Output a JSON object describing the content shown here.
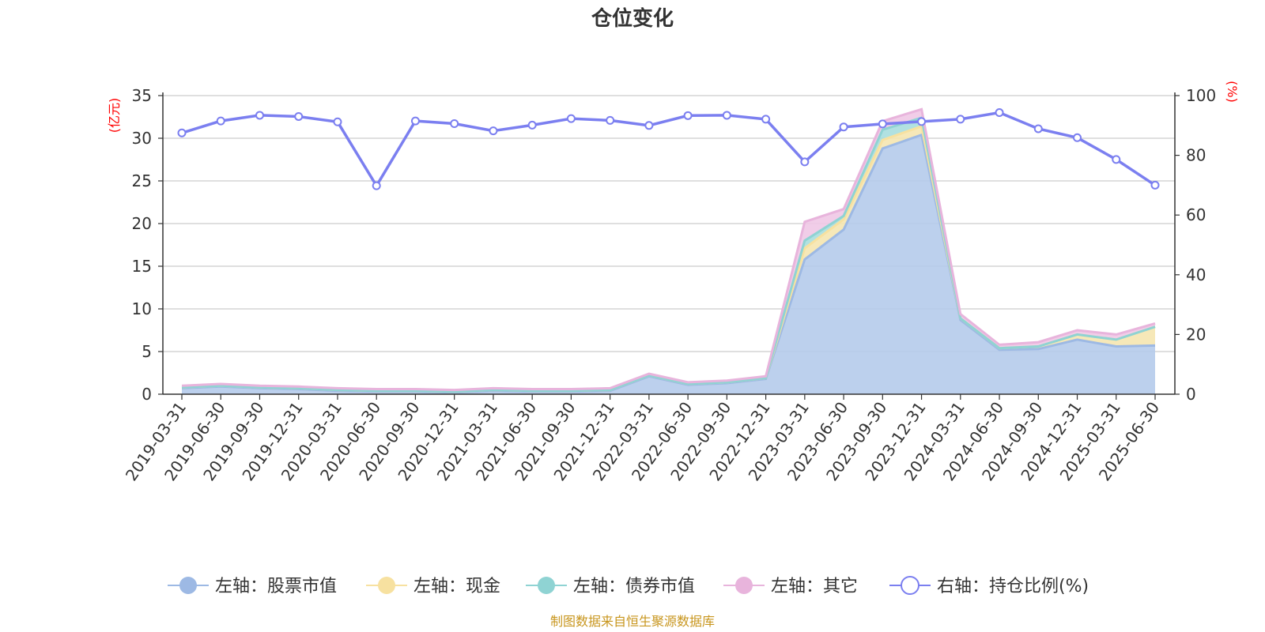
{
  "chart_data": {
    "type": "area",
    "title": "仓位变化",
    "left_unit": "(亿元)",
    "right_unit": "(%)",
    "categories": [
      "2019-03-31",
      "2019-06-30",
      "2019-09-30",
      "2019-12-31",
      "2020-03-31",
      "2020-06-30",
      "2020-09-30",
      "2020-12-31",
      "2021-03-31",
      "2021-06-30",
      "2021-09-30",
      "2021-12-31",
      "2022-03-31",
      "2022-06-30",
      "2022-09-30",
      "2022-12-31",
      "2023-03-31",
      "2023-06-30",
      "2023-09-30",
      "2023-12-31",
      "2024-03-31",
      "2024-06-30",
      "2024-09-30",
      "2024-12-31",
      "2025-03-31",
      "2025-06-30"
    ],
    "left_axis": {
      "min": 0,
      "max": 35,
      "ticks": [
        0,
        5,
        10,
        15,
        20,
        25,
        30,
        35
      ]
    },
    "right_axis": {
      "min": 0,
      "max": 100,
      "ticks": [
        0,
        20,
        40,
        60,
        80,
        100
      ]
    },
    "series": [
      {
        "name": "左轴：股票市值",
        "axis": "left",
        "stacked": true,
        "color": "#9db9e4",
        "fill": "#b5cbeb",
        "values": [
          0.7,
          0.9,
          0.7,
          0.6,
          0.4,
          0.3,
          0.3,
          0.2,
          0.4,
          0.3,
          0.3,
          0.4,
          2.1,
          1.1,
          1.3,
          1.8,
          15.8,
          19.3,
          28.8,
          30.4,
          8.7,
          5.2,
          5.3,
          6.4,
          5.6,
          5.7
        ]
      },
      {
        "name": "左轴：现金",
        "axis": "left",
        "stacked": true,
        "color": "#f7e1a0",
        "fill": "#f5e6b0",
        "values": [
          0.1,
          0.1,
          0.1,
          0.1,
          0.1,
          0.1,
          0.1,
          0.1,
          0.1,
          0.1,
          0.1,
          0.1,
          0.1,
          0.1,
          0.1,
          0.1,
          1.3,
          1.2,
          1.0,
          1.0,
          0.2,
          0.2,
          0.3,
          0.6,
          0.8,
          2.2
        ]
      },
      {
        "name": "左轴：债券市值",
        "axis": "left",
        "stacked": true,
        "color": "#8fd3d3",
        "fill": "#a8dede",
        "values": [
          0,
          0,
          0,
          0,
          0,
          0,
          0,
          0,
          0,
          0,
          0,
          0,
          0,
          0,
          0,
          0,
          0.9,
          0.4,
          1.2,
          1.0,
          0,
          0,
          0,
          0,
          0,
          0
        ]
      },
      {
        "name": "左轴：其它",
        "axis": "left",
        "stacked": true,
        "color": "#e8b4dc",
        "fill": "#f0c8e6",
        "values": [
          0.2,
          0.2,
          0.2,
          0.2,
          0.2,
          0.2,
          0.2,
          0.2,
          0.2,
          0.2,
          0.2,
          0.2,
          0.2,
          0.2,
          0.2,
          0.2,
          2.2,
          0.8,
          1.0,
          1.0,
          0.5,
          0.4,
          0.5,
          0.5,
          0.6,
          0.4
        ]
      },
      {
        "name": "右轴：持仓比例(%)",
        "axis": "right",
        "stacked": false,
        "color": "#7b7ff0",
        "values": [
          87.5,
          91.5,
          93.4,
          93.0,
          91.2,
          69.8,
          91.5,
          90.6,
          88.2,
          90.1,
          92.3,
          91.7,
          90.0,
          93.3,
          93.4,
          92.1,
          77.8,
          89.5,
          90.5,
          91.3,
          92.1,
          94.3,
          88.9,
          85.9,
          78.6,
          70.0
        ]
      }
    ]
  },
  "source_text": "制图数据来自恒生聚源数据库"
}
